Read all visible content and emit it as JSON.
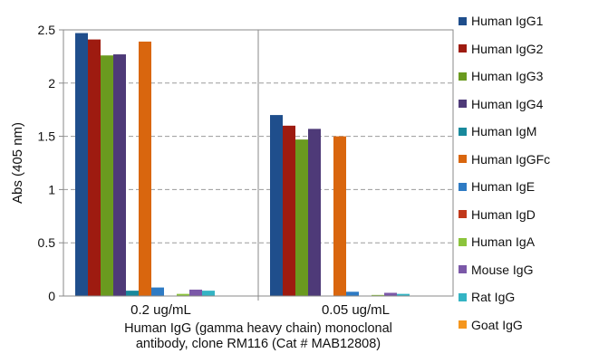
{
  "chart_data": {
    "type": "bar",
    "categories": [
      "0.2 ug/mL",
      "0.05 ug/mL"
    ],
    "series": [
      {
        "name": "Human IgG1",
        "color": "#1F4E8C",
        "values": [
          2.47,
          1.7
        ]
      },
      {
        "name": "Human IgG2",
        "color": "#9E1B10",
        "values": [
          2.41,
          1.6
        ]
      },
      {
        "name": "Human IgG3",
        "color": "#6A9A1F",
        "values": [
          2.26,
          1.47
        ]
      },
      {
        "name": "Human IgG4",
        "color": "#4E3A78",
        "values": [
          2.27,
          1.57
        ]
      },
      {
        "name": "Human IgM",
        "color": "#18899C",
        "values": [
          0.05,
          0.0
        ]
      },
      {
        "name": "Human IgGFc",
        "color": "#D9660E",
        "values": [
          2.39,
          1.5
        ]
      },
      {
        "name": "Human IgE",
        "color": "#2E7BC4",
        "values": [
          0.08,
          0.04
        ]
      },
      {
        "name": "Human IgD",
        "color": "#C1381A",
        "values": [
          0.0,
          0.0
        ]
      },
      {
        "name": "Human IgA",
        "color": "#8CC43C",
        "values": [
          0.02,
          0.01
        ]
      },
      {
        "name": "Mouse IgG",
        "color": "#7B58A8",
        "values": [
          0.06,
          0.03
        ]
      },
      {
        "name": "Rat IgG",
        "color": "#34B4C4",
        "values": [
          0.05,
          0.02
        ]
      },
      {
        "name": "Goat IgG",
        "color": "#F5961D",
        "values": [
          0.0,
          0.0
        ]
      }
    ],
    "ylabel": "Abs (405 nm)",
    "xlabel_line1": "Human IgG (gamma heavy chain) monoclonal",
    "xlabel_line2": "antibody, clone RM116 (Cat # MAB12808)",
    "ylim": [
      0,
      2.5
    ],
    "yticks": [
      0,
      0.5,
      1,
      1.5,
      2,
      2.5
    ],
    "ytick_labels": [
      "0",
      "0.5",
      "1",
      "1.5",
      "2",
      "2.5"
    ],
    "grid": "horizontal dashed",
    "legend": "right"
  }
}
